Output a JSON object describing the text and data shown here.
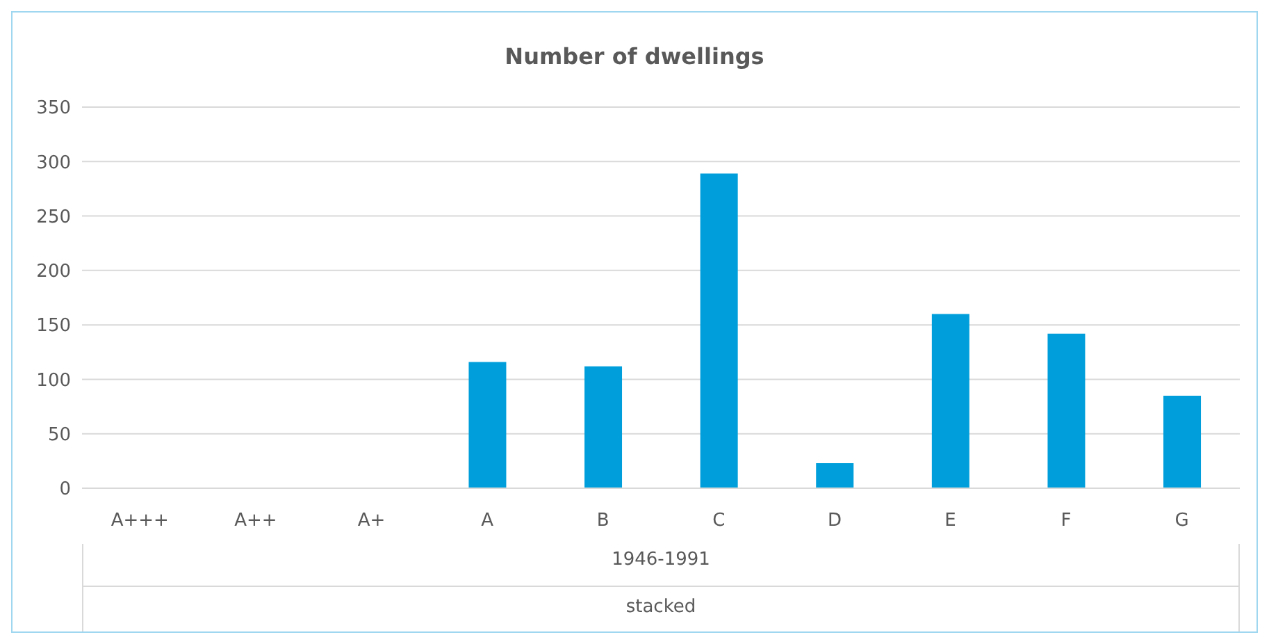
{
  "chart_data": {
    "type": "bar",
    "title": "Number of dwellings",
    "xlabel": "1946-1991",
    "annotations": [
      "stacked"
    ],
    "categories": [
      "A+++",
      "A++",
      "A+",
      "A",
      "B",
      "C",
      "D",
      "E",
      "F",
      "G"
    ],
    "values": [
      0,
      0,
      0,
      116,
      112,
      289,
      23,
      160,
      142,
      85
    ],
    "color": "#009fdb",
    "ylim": [
      0,
      350
    ],
    "yticks": [
      0,
      50,
      100,
      150,
      200,
      250,
      300,
      350
    ],
    "grid": "y"
  }
}
